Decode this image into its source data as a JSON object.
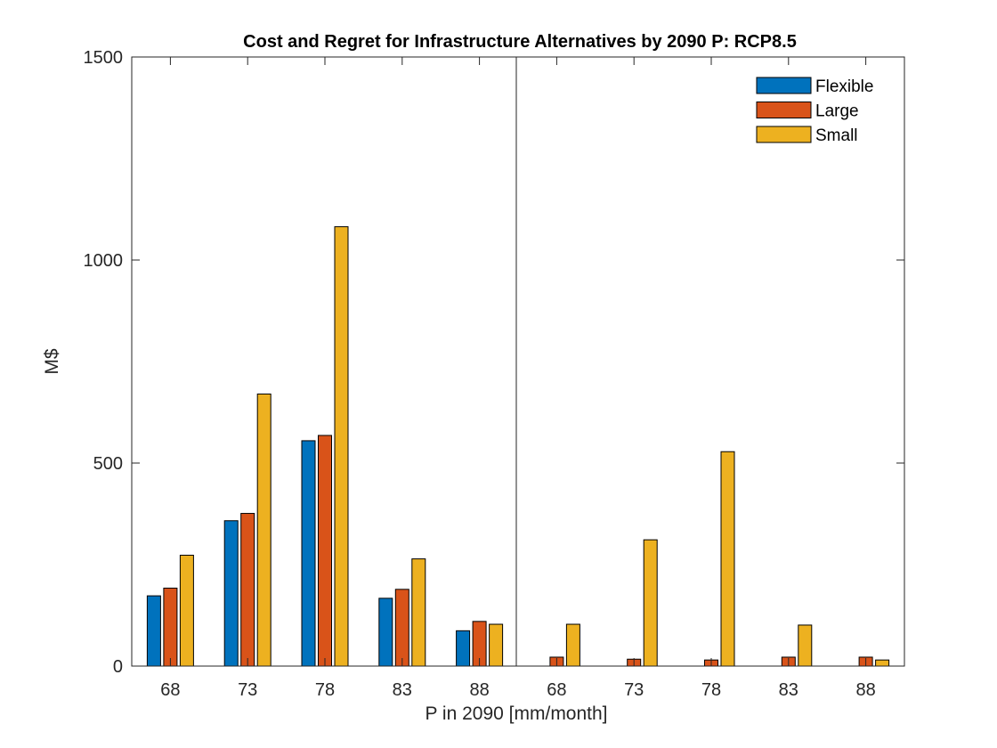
{
  "chart_data": {
    "type": "bar",
    "title": "Cost and Regret for Infrastructure Alternatives by 2090 P: RCP8.5",
    "xlabel": "P in 2090 [mm/month]",
    "ylabel": "M$",
    "ylim": [
      0,
      1500
    ],
    "yticks": [
      0,
      500,
      1000,
      1500
    ],
    "legend_position": "top-right",
    "grid": false,
    "categories": [
      "68",
      "73",
      "78",
      "83",
      "88",
      "68",
      "73",
      "78",
      "83",
      "88"
    ],
    "groups": [
      "Cost",
      "Regret"
    ],
    "series": [
      {
        "name": "Flexible",
        "color": "#0072BD",
        "values": [
          173,
          358,
          555,
          167,
          87,
          0,
          0,
          0,
          0,
          0
        ]
      },
      {
        "name": "Large",
        "color": "#D95319",
        "values": [
          192,
          376,
          568,
          189,
          110,
          22,
          17,
          15,
          22,
          22
        ]
      },
      {
        "name": "Small",
        "color": "#EDB120",
        "values": [
          273,
          670,
          1082,
          264,
          103,
          103,
          311,
          528,
          101,
          15
        ]
      }
    ]
  }
}
